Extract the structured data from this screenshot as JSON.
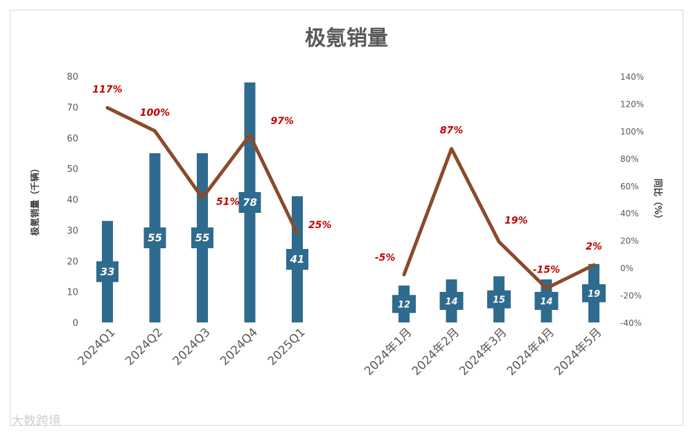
{
  "chart_data": {
    "type": "bar",
    "title": "极氪销量",
    "ylabel": "极氪销量（千辆）",
    "y2label": "同比（%）",
    "ylim": [
      0,
      80
    ],
    "yticks": [
      0,
      10,
      20,
      30,
      40,
      50,
      60,
      70,
      80
    ],
    "y2lim": [
      -40,
      140
    ],
    "y2ticks": [
      "-40%",
      "-20%",
      "0%",
      "20%",
      "40%",
      "60%",
      "80%",
      "100%",
      "120%",
      "140%"
    ],
    "groups": [
      {
        "categories": [
          "2024Q1",
          "2024Q2",
          "2024Q3",
          "2024Q4",
          "2025Q1"
        ],
        "values": [
          33,
          55,
          55,
          78,
          41
        ],
        "yoy": [
          117,
          100,
          51,
          97,
          25
        ],
        "yoy_labels": [
          "117%",
          "100%",
          "51%",
          "97%",
          "25%"
        ]
      },
      {
        "categories": [
          "2024年1月",
          "2024年2月",
          "2024年3月",
          "2024年4月",
          "2024年5月"
        ],
        "values": [
          12,
          14,
          15,
          14,
          19
        ],
        "yoy": [
          -5,
          87,
          19,
          -15,
          2
        ],
        "yoy_labels": [
          "-5%",
          "87%",
          "19%",
          "-15%",
          "2%"
        ]
      }
    ],
    "grid": false,
    "bar_color": "#2e6b8e",
    "line_color": "#8b4a2b",
    "pct_color": "#c00000"
  },
  "watermark": "大数跨境"
}
